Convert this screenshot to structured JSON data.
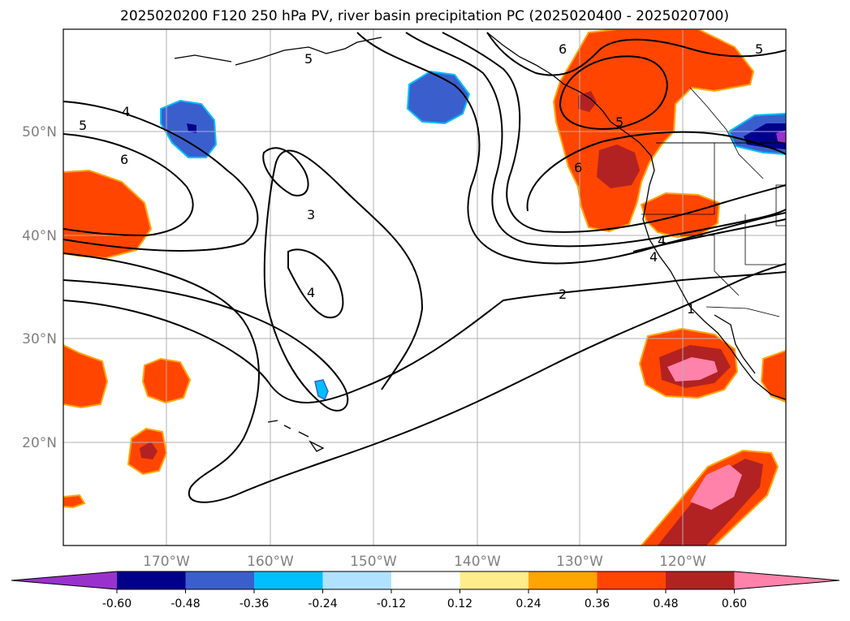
{
  "title": "2025020200 F120 250 hPa PV, river basin precipitation PC (2025020400 - 2025020700)",
  "map": {
    "lon_range": [
      -180,
      -110
    ],
    "lat_range": [
      10,
      60
    ],
    "lon_ticks": [
      {
        "value": -170,
        "label": "170°W"
      },
      {
        "value": -160,
        "label": "160°W"
      },
      {
        "value": -150,
        "label": "150°W"
      },
      {
        "value": -140,
        "label": "140°W"
      },
      {
        "value": -130,
        "label": "130°W"
      },
      {
        "value": -120,
        "label": "120°W"
      }
    ],
    "lat_ticks": [
      {
        "value": 20,
        "label": "20°N"
      },
      {
        "value": 30,
        "label": "30°N"
      },
      {
        "value": 40,
        "label": "40°N"
      },
      {
        "value": 50,
        "label": "50°N"
      }
    ],
    "grid": true,
    "contour_labels": [
      "5",
      "4",
      "5",
      "6",
      "3",
      "4",
      "2",
      "6",
      "6",
      "5",
      "4",
      "4",
      "1",
      "5"
    ]
  },
  "colorbar": {
    "levels": [
      "-0.60",
      "-0.48",
      "-0.36",
      "-0.24",
      "-0.12",
      "0.12",
      "0.24",
      "0.36",
      "0.48",
      "0.60"
    ],
    "colors": [
      "#9932cc",
      "#00008b",
      "#3a5fcd",
      "#00bfff",
      "#b0e2ff",
      "#ffffff",
      "#ffec8b",
      "#ffa500",
      "#ff4500",
      "#b22222",
      "#ff82ab"
    ],
    "extend": "both"
  }
}
